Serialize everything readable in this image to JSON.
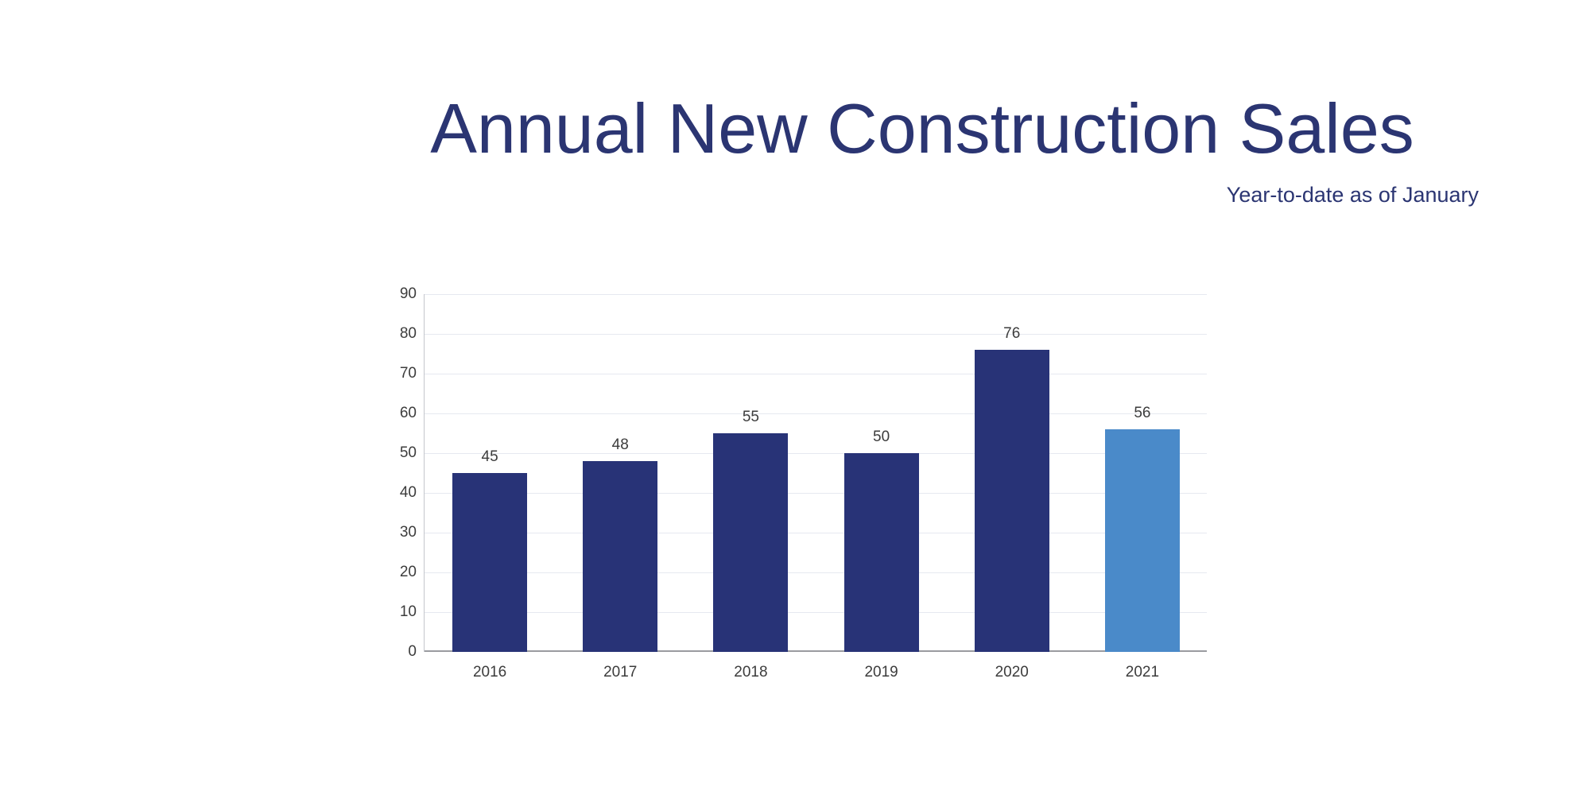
{
  "header": {
    "title": "Annual New Construction Sales",
    "subtitle": "Year-to-date as of January"
  },
  "colors": {
    "title_text": "#2b3572",
    "bar_default": "#283377",
    "bar_highlight": "#4a8ac9",
    "gridline": "#e6e9f0",
    "axis_line": "#c4c6cc",
    "baseline": "#9a9ba0",
    "tick_text": "#3c3c3c"
  },
  "chart_data": {
    "type": "bar",
    "title": "Annual New Construction Sales",
    "subtitle": "Year-to-date as of January",
    "categories": [
      "2016",
      "2017",
      "2018",
      "2019",
      "2020",
      "2021"
    ],
    "values": [
      45,
      48,
      55,
      50,
      76,
      56
    ],
    "bar_colors": [
      "#283377",
      "#283377",
      "#283377",
      "#283377",
      "#283377",
      "#4a8ac9"
    ],
    "data_labels": [
      "45",
      "48",
      "55",
      "50",
      "76",
      "56"
    ],
    "xlabel": "",
    "ylabel": "",
    "ylim": [
      0,
      90
    ],
    "yticks": [
      0,
      10,
      20,
      30,
      40,
      50,
      60,
      70,
      80,
      90
    ],
    "grid": true,
    "legend": "none",
    "highlighted_category": "2021"
  }
}
